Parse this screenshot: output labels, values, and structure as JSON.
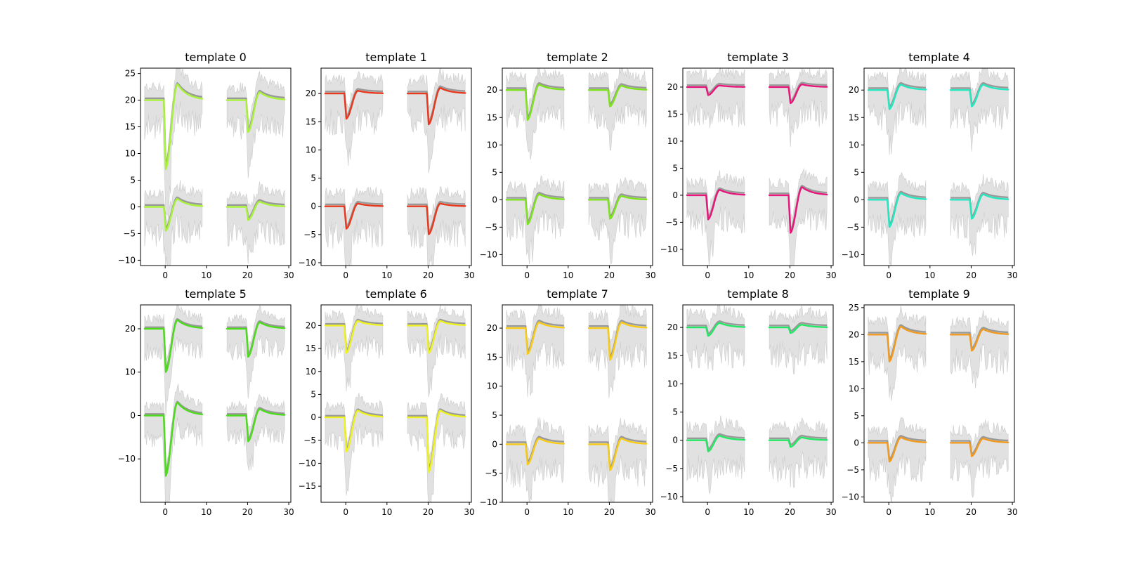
{
  "chart_data": {
    "type": "line",
    "panels": [
      {
        "title": "template 0",
        "color": "#a9f23a",
        "ylim": [
          -11,
          26
        ],
        "yticks": [
          25,
          20,
          15,
          10,
          5,
          0,
          -5,
          -10
        ],
        "traces": [
          [
            20,
            7,
            23
          ],
          [
            20,
            14,
            21.5
          ],
          [
            0,
            -4.5,
            1.5
          ],
          [
            0,
            -2.5,
            1
          ]
        ]
      },
      {
        "title": "template 1",
        "color": "#e8391e",
        "ylim": [
          -10.5,
          24.5
        ],
        "yticks": [
          20,
          15,
          10,
          5,
          0,
          -5,
          -10
        ],
        "traces": [
          [
            20,
            15.5,
            20.5
          ],
          [
            20,
            14.5,
            21
          ],
          [
            0,
            -4,
            0.5
          ],
          [
            0,
            -5,
            0.5
          ]
        ]
      },
      {
        "title": "template 2",
        "color": "#7de31c",
        "ylim": [
          -12,
          24
        ],
        "yticks": [
          20,
          15,
          10,
          5,
          0,
          -5,
          -10
        ],
        "traces": [
          [
            20,
            14.5,
            21
          ],
          [
            20,
            17,
            20.8
          ],
          [
            0,
            -4.5,
            1
          ],
          [
            0,
            -3.5,
            0.7
          ]
        ]
      },
      {
        "title": "template 3",
        "color": "#e8157a",
        "ylim": [
          -13,
          23.5
        ],
        "yticks": [
          20,
          15,
          10,
          5,
          0,
          -5,
          -10
        ],
        "traces": [
          [
            20,
            18.5,
            20.3
          ],
          [
            20,
            17,
            20.5
          ],
          [
            0,
            -4.5,
            1
          ],
          [
            0,
            -7,
            1.5
          ]
        ]
      },
      {
        "title": "template 4",
        "color": "#23e8c0",
        "ylim": [
          -12,
          24
        ],
        "yticks": [
          20,
          15,
          10,
          5,
          0,
          -5,
          -10
        ],
        "traces": [
          [
            20,
            16.5,
            21
          ],
          [
            20,
            17,
            21
          ],
          [
            0,
            -5,
            1.2
          ],
          [
            0,
            -3.5,
            1
          ]
        ]
      },
      {
        "title": "template 5",
        "color": "#4cdc1c",
        "ylim": [
          -20,
          25.5
        ],
        "yticks": [
          20,
          10,
          0,
          -10
        ],
        "traces": [
          [
            20,
            10,
            22
          ],
          [
            20,
            13.5,
            21.5
          ],
          [
            0,
            -14,
            3
          ],
          [
            0,
            -6,
            1.5
          ]
        ]
      },
      {
        "title": "template 6",
        "color": "#eef21e",
        "ylim": [
          -18.5,
          24.5
        ],
        "yticks": [
          20,
          15,
          10,
          5,
          0,
          -5,
          -10,
          -15
        ],
        "traces": [
          [
            20,
            14,
            21
          ],
          [
            20,
            14,
            21
          ],
          [
            0,
            -7.5,
            1.5
          ],
          [
            0,
            -12,
            1.5
          ]
        ]
      },
      {
        "title": "template 7",
        "color": "#f7cb16",
        "ylim": [
          -10,
          24
        ],
        "yticks": [
          20,
          15,
          10,
          5,
          0,
          -5,
          -10
        ],
        "traces": [
          [
            20,
            15.5,
            21
          ],
          [
            20,
            14.5,
            21
          ],
          [
            0,
            -3.5,
            1
          ],
          [
            0,
            -4.5,
            1
          ]
        ]
      },
      {
        "title": "template 8",
        "color": "#23e865",
        "ylim": [
          -11,
          24
        ],
        "yticks": [
          20,
          15,
          10,
          5,
          0,
          -5,
          -10
        ],
        "traces": [
          [
            20,
            18.5,
            20.8
          ],
          [
            20,
            19,
            20.5
          ],
          [
            0,
            -2,
            0.8
          ],
          [
            0,
            -1.2,
            0.5
          ]
        ]
      },
      {
        "title": "template 9",
        "color": "#f29a1e",
        "ylim": [
          -11,
          25.5
        ],
        "yticks": [
          25,
          20,
          15,
          10,
          5,
          0,
          -5,
          -10
        ],
        "traces": [
          [
            20,
            15,
            21.5
          ],
          [
            20,
            17,
            21
          ],
          [
            0,
            -3.5,
            1
          ],
          [
            0,
            -2.5,
            0.8
          ]
        ]
      }
    ],
    "xlim": [
      -6,
      30.5
    ],
    "xticks": [
      0,
      10,
      20,
      30
    ],
    "segments_x": [
      [
        -5,
        9
      ],
      [
        15,
        29
      ]
    ],
    "band_color": "#d9d9d9",
    "mean_color": "#999999"
  }
}
